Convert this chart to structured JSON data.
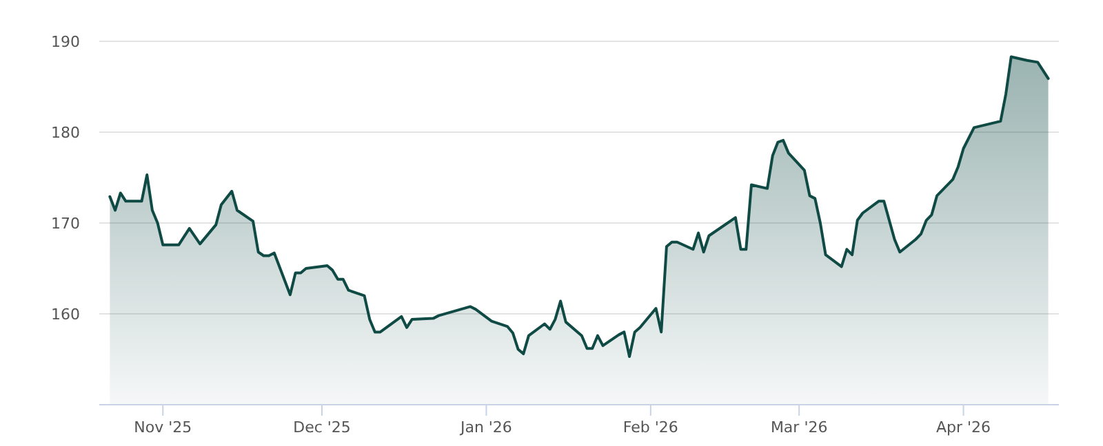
{
  "chart_data": {
    "type": "area",
    "x": [
      "2025-10-22",
      "2025-10-23",
      "2025-10-24",
      "2025-10-25",
      "2025-10-28",
      "2025-10-29",
      "2025-10-30",
      "2025-10-31",
      "2025-11-01",
      "2025-11-04",
      "2025-11-06",
      "2025-11-08",
      "2025-11-11",
      "2025-11-12",
      "2025-11-14",
      "2025-11-15",
      "2025-11-18",
      "2025-11-19",
      "2025-11-20",
      "2025-11-21",
      "2025-11-22",
      "2025-11-25",
      "2025-11-26",
      "2025-11-27",
      "2025-11-28",
      "2025-12-02",
      "2025-12-03",
      "2025-12-04",
      "2025-12-05",
      "2025-12-06",
      "2025-12-09",
      "2025-12-10",
      "2025-12-11",
      "2025-12-12",
      "2025-12-16",
      "2025-12-17",
      "2025-12-18",
      "2025-12-22",
      "2025-12-23",
      "2025-12-29",
      "2025-12-30",
      "2026-01-02",
      "2026-01-05",
      "2026-01-06",
      "2026-01-07",
      "2026-01-08",
      "2026-01-09",
      "2026-01-12",
      "2026-01-13",
      "2026-01-14",
      "2026-01-15",
      "2026-01-16",
      "2026-01-19",
      "2026-01-20",
      "2026-01-21",
      "2026-01-22",
      "2026-01-23",
      "2026-01-26",
      "2026-01-27",
      "2026-01-28",
      "2026-01-29",
      "2026-01-30",
      "2026-02-02",
      "2026-02-03",
      "2026-02-04",
      "2026-02-05",
      "2026-02-06",
      "2026-02-09",
      "2026-02-10",
      "2026-02-11",
      "2026-02-12",
      "2026-02-17",
      "2026-02-18",
      "2026-02-19",
      "2026-02-20",
      "2026-02-23",
      "2026-02-24",
      "2026-02-25",
      "2026-02-26",
      "2026-02-27",
      "2026-03-02",
      "2026-03-03",
      "2026-03-04",
      "2026-03-05",
      "2026-03-06",
      "2026-03-09",
      "2026-03-10",
      "2026-03-11",
      "2026-03-12",
      "2026-03-13",
      "2026-03-16",
      "2026-03-17",
      "2026-03-19",
      "2026-03-20",
      "2026-03-23",
      "2026-03-24",
      "2026-03-25",
      "2026-03-26",
      "2026-03-27",
      "2026-03-30",
      "2026-03-31",
      "2026-04-01",
      "2026-04-03",
      "2026-04-08",
      "2026-04-09",
      "2026-04-10",
      "2026-04-13",
      "2026-04-15",
      "2026-04-17"
    ],
    "series": [
      {
        "color": "#0f4a45",
        "values": [
          172.9,
          171.4,
          173.3,
          172.4,
          172.4,
          175.3,
          171.4,
          170.0,
          167.6,
          167.6,
          169.4,
          167.7,
          169.8,
          172.0,
          173.5,
          171.4,
          170.2,
          166.8,
          166.4,
          166.4,
          166.7,
          162.1,
          164.5,
          164.5,
          165.0,
          165.3,
          164.8,
          163.8,
          163.8,
          162.6,
          162.0,
          159.4,
          158.0,
          158.0,
          159.7,
          158.5,
          159.4,
          159.5,
          159.8,
          160.8,
          160.5,
          159.2,
          158.6,
          157.9,
          156.1,
          155.6,
          157.6,
          158.9,
          158.3,
          159.4,
          161.4,
          159.1,
          157.6,
          156.2,
          156.2,
          157.6,
          156.5,
          157.7,
          158.0,
          155.3,
          158.0,
          158.5,
          160.6,
          158.0,
          167.4,
          167.9,
          167.9,
          167.1,
          168.9,
          166.8,
          168.6,
          170.6,
          167.1,
          167.1,
          174.2,
          173.8,
          177.4,
          178.9,
          179.1,
          177.7,
          175.8,
          173.0,
          172.7,
          170.0,
          166.5,
          165.2,
          167.1,
          166.5,
          170.3,
          171.1,
          172.4,
          172.4,
          168.2,
          166.8,
          168.2,
          168.8,
          170.3,
          170.9,
          173.0,
          174.8,
          176.2,
          178.2,
          180.5,
          181.2,
          184.2,
          188.3,
          187.9,
          187.7,
          185.9
        ]
      }
    ],
    "xlim": [
      "2025-10-20",
      "2026-04-19"
    ],
    "xticks": [
      {
        "value": "2025-11-01",
        "label": "Nov '25"
      },
      {
        "value": "2025-12-01",
        "label": "Dec '25"
      },
      {
        "value": "2026-01-01",
        "label": "Jan '26"
      },
      {
        "value": "2026-02-01",
        "label": "Feb '26"
      },
      {
        "value": "2026-03-01",
        "label": "Mar '26"
      },
      {
        "value": "2026-04-01",
        "label": "Apr '26"
      }
    ],
    "ylim": [
      150,
      190
    ],
    "yticks": [
      160,
      170,
      180,
      190
    ],
    "grid": "y"
  }
}
